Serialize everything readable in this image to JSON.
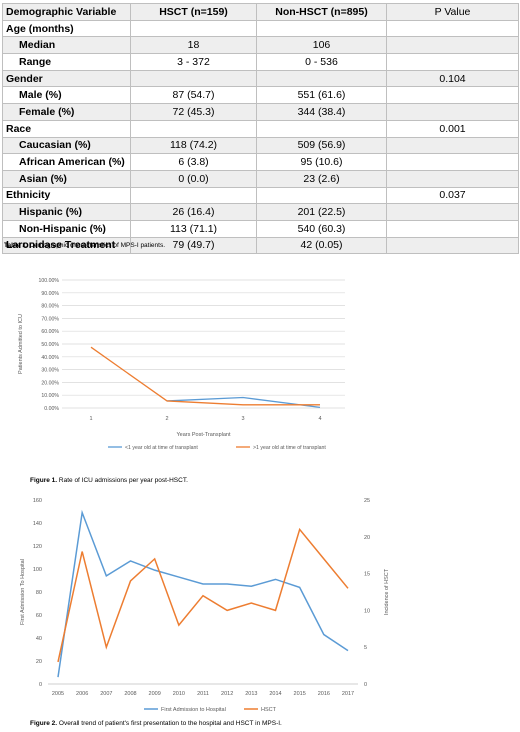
{
  "table": {
    "headers": [
      "Demographic Variable",
      "HSCT (n=159)",
      "Non-HSCT (n=895)",
      "P Value"
    ],
    "rows": [
      {
        "label": "Age (months)",
        "hsct": "",
        "non": "",
        "p": "",
        "type": "group"
      },
      {
        "label": "Median",
        "hsct": "18",
        "non": "106",
        "p": "",
        "type": "sub"
      },
      {
        "label": "Range",
        "hsct": "3 - 372",
        "non": "0 - 536",
        "p": "",
        "type": "sub"
      },
      {
        "label": "Gender",
        "hsct": "",
        "non": "",
        "p": "0.104",
        "type": "group"
      },
      {
        "label": "Male (%)",
        "hsct": "87 (54.7)",
        "non": "551 (61.6)",
        "p": "",
        "type": "sub"
      },
      {
        "label": "Female (%)",
        "hsct": "72 (45.3)",
        "non": "344 (38.4)",
        "p": "",
        "type": "sub"
      },
      {
        "label": "Race",
        "hsct": "",
        "non": "",
        "p": "0.001",
        "type": "group"
      },
      {
        "label": "Caucasian (%)",
        "hsct": "118 (74.2)",
        "non": "509 (56.9)",
        "p": "",
        "type": "sub"
      },
      {
        "label": "African American (%)",
        "hsct": "6 (3.8)",
        "non": "95 (10.6)",
        "p": "",
        "type": "sub"
      },
      {
        "label": "Asian (%)",
        "hsct": "0 (0.0)",
        "non": "23 (2.6)",
        "p": "",
        "type": "sub"
      },
      {
        "label": "Ethnicity",
        "hsct": "",
        "non": "",
        "p": "0.037",
        "type": "group"
      },
      {
        "label": "Hispanic (%)",
        "hsct": "26 (16.4)",
        "non": "201 (22.5)",
        "p": "",
        "type": "sub"
      },
      {
        "label": "Non-Hispanic (%)",
        "hsct": "113 (71.1)",
        "non": "540 (60.3)",
        "p": "",
        "type": "sub"
      },
      {
        "label": "Laronidase Treatment",
        "hsct": "79 (49.7)",
        "non": "42 (0.05)",
        "p": "",
        "type": "group"
      }
    ],
    "caption_label": "Table 1.",
    "caption_text": "Demographic characteristics of MPS-I patients."
  },
  "figure1": {
    "caption_label": "Figure 1.",
    "caption_text": "Rate of ICU admissions per year post-HSCT."
  },
  "figure2": {
    "caption_label": "Figure 2.",
    "caption_text": "Overall trend of patient's first presentation to the hospital and HSCT in MPS-I."
  },
  "chart_data": [
    {
      "type": "line",
      "x": [
        1,
        2,
        3,
        4
      ],
      "xlabel": "Years Post-Transplant",
      "ylabel": "Patients Admitted to ICU",
      "ylim": [
        0,
        100
      ],
      "yticks": [
        "0.00%",
        "10.00%",
        "20.00%",
        "30.00%",
        "40.00%",
        "50.00%",
        "60.00%",
        "70.00%",
        "80.00%",
        "90.00%",
        "100.00%"
      ],
      "grid": true,
      "legend": "bottom",
      "series": [
        {
          "name": "<1 year old at time of transplant",
          "color": "#5b9bd5",
          "values": [
            null,
            5.5,
            8.2,
            0.5
          ]
        },
        {
          "name": ">1 year old at time of transplant",
          "color": "#ed7d31",
          "values": [
            47.5,
            5.5,
            2.5,
            2.5
          ]
        }
      ]
    },
    {
      "type": "line",
      "x": [
        "2005",
        "2006",
        "2007",
        "2008",
        "2009",
        "2010",
        "2011",
        "2012",
        "2013",
        "2014",
        "2015",
        "2016",
        "2017"
      ],
      "ylabel": "First Admission To Hospital",
      "y2label": "Incidence of HSCT",
      "ylim": [
        0,
        160
      ],
      "y2lim": [
        0,
        25
      ],
      "yticks": [
        0,
        20,
        40,
        60,
        80,
        100,
        120,
        140,
        160
      ],
      "y2ticks": [
        0,
        5,
        10,
        15,
        20,
        25
      ],
      "grid": false,
      "legend": "bottom",
      "series": [
        {
          "name": "First Admission to Hospital",
          "color": "#5b9bd5",
          "axis": "left",
          "values": [
            6,
            149,
            94,
            107,
            99,
            93,
            87,
            87,
            85,
            91,
            84,
            43,
            29
          ]
        },
        {
          "name": "HSCT",
          "color": "#ed7d31",
          "axis": "right",
          "values": [
            3,
            18,
            5,
            14,
            17,
            8,
            12,
            10,
            11,
            10,
            21,
            17,
            13
          ]
        }
      ]
    }
  ]
}
